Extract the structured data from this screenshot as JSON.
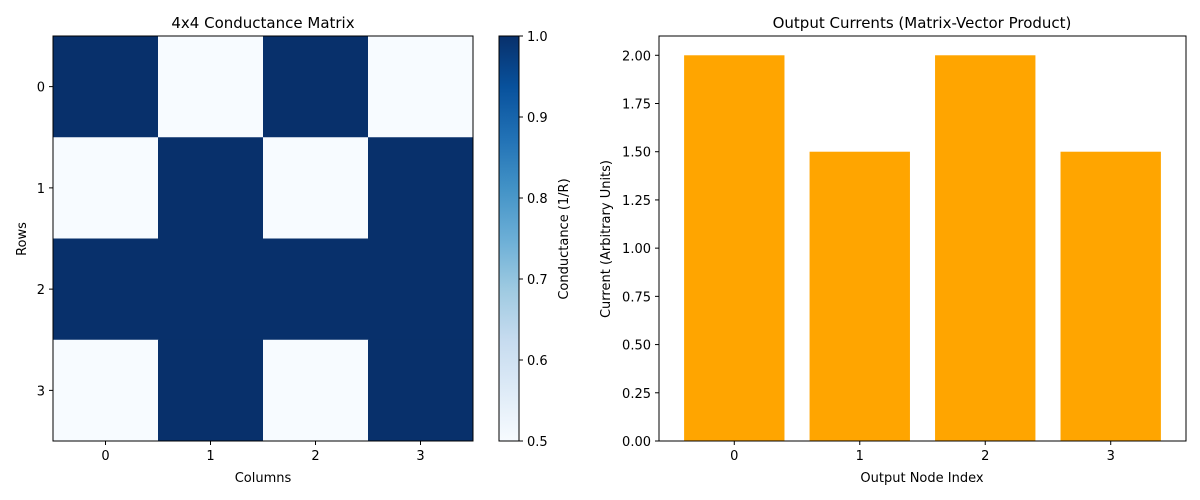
{
  "chart_data": [
    {
      "type": "heatmap",
      "title": "4x4 Conductance Matrix",
      "xlabel": "Columns",
      "ylabel": "Rows",
      "x_tick_labels": [
        "0",
        "1",
        "2",
        "3"
      ],
      "y_tick_labels": [
        "0",
        "1",
        "2",
        "3"
      ],
      "values": [
        [
          1.0,
          0.5,
          1.0,
          0.5
        ],
        [
          0.5,
          1.0,
          0.5,
          1.0
        ],
        [
          1.0,
          1.0,
          1.0,
          1.0
        ],
        [
          0.5,
          1.0,
          0.5,
          1.0
        ]
      ],
      "colormap": "Blues",
      "low_color": "#f7fbff",
      "high_color": "#08306b",
      "colorbar": {
        "label": "Conductance (1/R)",
        "range": [
          0.5,
          1.0
        ],
        "ticks": [
          "0.5",
          "0.6",
          "0.7",
          "0.8",
          "0.9",
          "1.0"
        ]
      }
    },
    {
      "type": "bar",
      "title": "Output Currents (Matrix-Vector Product)",
      "xlabel": "Output Node Index",
      "ylabel": "Current (Arbitrary Units)",
      "categories": [
        "0",
        "1",
        "2",
        "3"
      ],
      "values": [
        2.0,
        1.5,
        2.0,
        1.5
      ],
      "ylim": [
        0,
        2.1
      ],
      "y_ticks": [
        "0.00",
        "0.25",
        "0.50",
        "0.75",
        "1.00",
        "1.25",
        "1.50",
        "1.75",
        "2.00"
      ],
      "bar_color": "#ffa500",
      "grid": false
    }
  ]
}
